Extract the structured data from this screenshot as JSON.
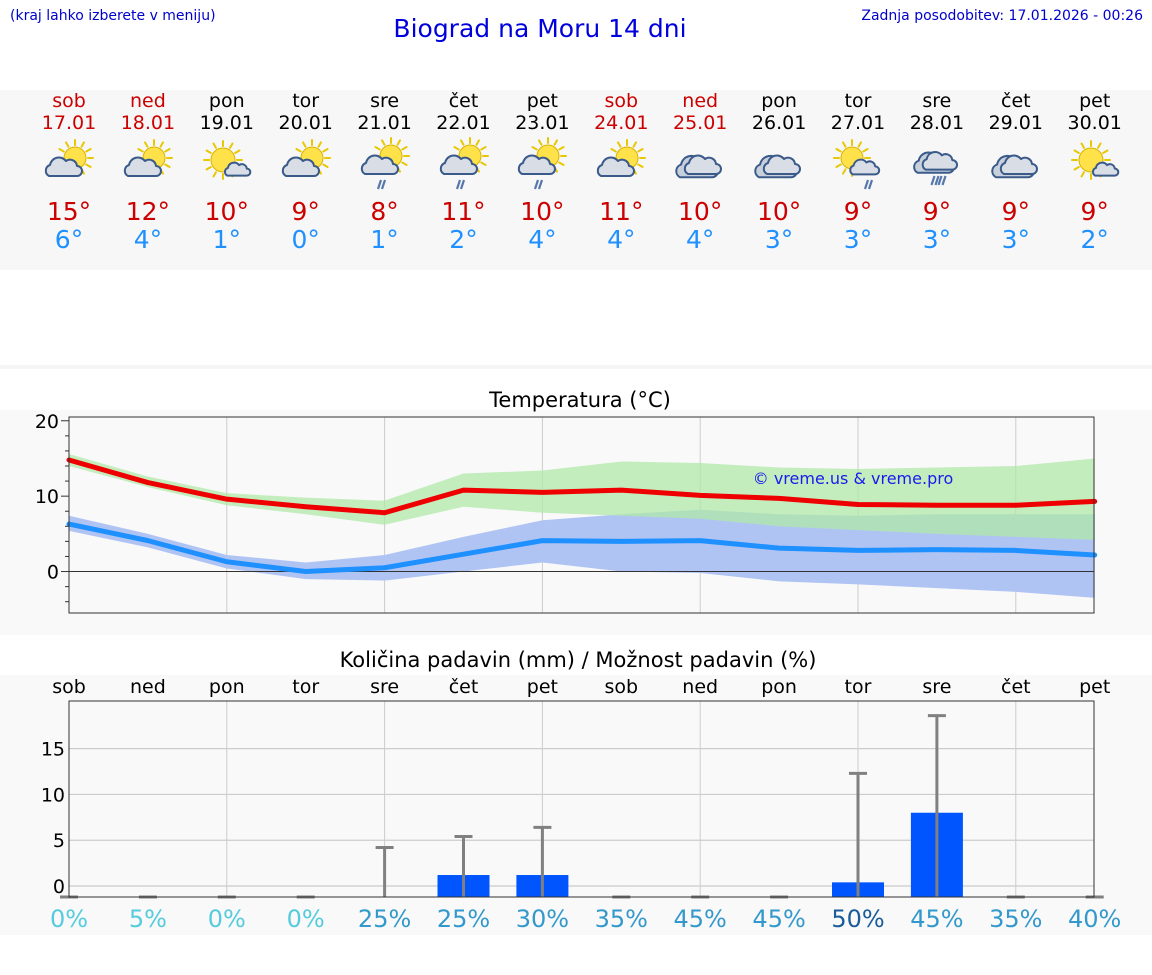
{
  "header": {
    "menu_hint": "(kraj lahko izberete v meniju)",
    "title": "Biograd na Moru 14 dni",
    "updated": "Zadnja posodobitev: 17.01.2026 - 00:26"
  },
  "colors": {
    "title": "#0000dd",
    "weekend": "#cc0000",
    "high": "#cc0000",
    "low": "#1e90ff",
    "max_line": "#ee0000",
    "min_line": "#1e90ff",
    "max_band": "#b0e8a8",
    "min_band": "#b0c4f4",
    "overlap_band": "#80c4a8",
    "bar": "#0055ff",
    "error_bar": "#808080",
    "prob_low": "#55ccdd",
    "prob_mid": "#3399cc",
    "prob_high": "#1a5c99"
  },
  "forecast": {
    "days": [
      {
        "name": "sob",
        "date": "17.01",
        "weekend": true,
        "icon": "partly-cloudy-icon",
        "high": "15°",
        "low": "6°"
      },
      {
        "name": "ned",
        "date": "18.01",
        "weekend": true,
        "icon": "partly-cloudy-icon",
        "high": "12°",
        "low": "4°"
      },
      {
        "name": "pon",
        "date": "19.01",
        "weekend": false,
        "icon": "mostly-sunny-icon",
        "high": "10°",
        "low": "1°"
      },
      {
        "name": "tor",
        "date": "20.01",
        "weekend": false,
        "icon": "partly-cloudy-icon",
        "high": "9°",
        "low": "0°"
      },
      {
        "name": "sre",
        "date": "21.01",
        "weekend": false,
        "icon": "sun-rain-icon",
        "high": "8°",
        "low": "1°"
      },
      {
        "name": "čet",
        "date": "22.01",
        "weekend": false,
        "icon": "sun-rain-icon",
        "high": "11°",
        "low": "2°"
      },
      {
        "name": "pet",
        "date": "23.01",
        "weekend": false,
        "icon": "sun-rain-icon",
        "high": "10°",
        "low": "4°"
      },
      {
        "name": "sob",
        "date": "24.01",
        "weekend": true,
        "icon": "partly-cloudy-icon",
        "high": "11°",
        "low": "4°"
      },
      {
        "name": "ned",
        "date": "25.01",
        "weekend": true,
        "icon": "cloudy-icon",
        "high": "10°",
        "low": "4°"
      },
      {
        "name": "pon",
        "date": "26.01",
        "weekend": false,
        "icon": "cloudy-icon",
        "high": "10°",
        "low": "3°"
      },
      {
        "name": "tor",
        "date": "27.01",
        "weekend": false,
        "icon": "sun-cloud-rain-icon",
        "high": "9°",
        "low": "3°"
      },
      {
        "name": "sre",
        "date": "28.01",
        "weekend": false,
        "icon": "heavy-rain-icon",
        "high": "9°",
        "low": "3°"
      },
      {
        "name": "čet",
        "date": "29.01",
        "weekend": false,
        "icon": "cloudy-icon",
        "high": "9°",
        "low": "3°"
      },
      {
        "name": "pet",
        "date": "30.01",
        "weekend": false,
        "icon": "mostly-sunny-icon",
        "high": "9°",
        "low": "2°"
      }
    ]
  },
  "chart_data": [
    {
      "type": "line",
      "title": "Temperatura (°C)",
      "watermark": "© vreme.us & vreme.pro",
      "ylim": [
        -5.5,
        20.5
      ],
      "yticks": [
        0,
        10,
        20
      ],
      "ytick_labels": [
        "0",
        "10",
        "20"
      ],
      "grid": true,
      "series": [
        {
          "name": "max",
          "values": [
            14.8,
            11.8,
            9.6,
            8.6,
            7.8,
            10.8,
            10.5,
            10.8,
            10.1,
            9.7,
            8.9,
            8.8,
            8.8,
            9.3
          ],
          "band_low": [
            14.0,
            11.2,
            8.8,
            7.6,
            6.2,
            8.6,
            7.8,
            7.4,
            7.0,
            6.0,
            5.5,
            5.0,
            4.6,
            4.2
          ],
          "band_high": [
            15.6,
            12.6,
            10.4,
            9.8,
            9.4,
            13.0,
            13.4,
            14.6,
            14.4,
            13.8,
            13.6,
            13.8,
            14.0,
            15.0
          ]
        },
        {
          "name": "min",
          "values": [
            6.3,
            4.1,
            1.3,
            0.0,
            0.5,
            2.3,
            4.1,
            4.0,
            4.1,
            3.1,
            2.8,
            2.9,
            2.8,
            2.2
          ],
          "band_low": [
            5.4,
            3.2,
            0.4,
            -1.0,
            -1.2,
            0.0,
            1.2,
            0.0,
            -0.2,
            -1.3,
            -1.7,
            -2.2,
            -2.7,
            -3.5
          ],
          "band_high": [
            7.4,
            5.0,
            2.2,
            1.2,
            2.2,
            4.6,
            6.8,
            7.6,
            8.2,
            7.6,
            7.4,
            7.6,
            7.6,
            7.6
          ]
        }
      ]
    },
    {
      "type": "bar",
      "title": "Količina padavin (mm) / Možnost padavin (%)",
      "categories": [
        "sob",
        "ned",
        "pon",
        "tor",
        "sre",
        "čet",
        "pet",
        "sob",
        "ned",
        "pon",
        "tor",
        "sre",
        "čet",
        "pet"
      ],
      "values": [
        0,
        0,
        0,
        0,
        0,
        1.2,
        1.2,
        0,
        0,
        0,
        0.4,
        8.0,
        0,
        0
      ],
      "error_high": [
        0,
        0,
        0,
        0,
        4.2,
        5.4,
        6.4,
        0,
        0,
        0,
        12.3,
        18.6,
        0,
        0
      ],
      "probabilities": [
        "0%",
        "5%",
        "0%",
        "0%",
        "25%",
        "25%",
        "30%",
        "35%",
        "45%",
        "45%",
        "50%",
        "45%",
        "35%",
        "40%"
      ],
      "ylim": [
        -1.2,
        20.2
      ],
      "yticks": [
        0,
        5,
        10,
        15
      ],
      "ytick_labels": [
        "0",
        "5",
        "10",
        "15"
      ],
      "grid": true
    }
  ]
}
